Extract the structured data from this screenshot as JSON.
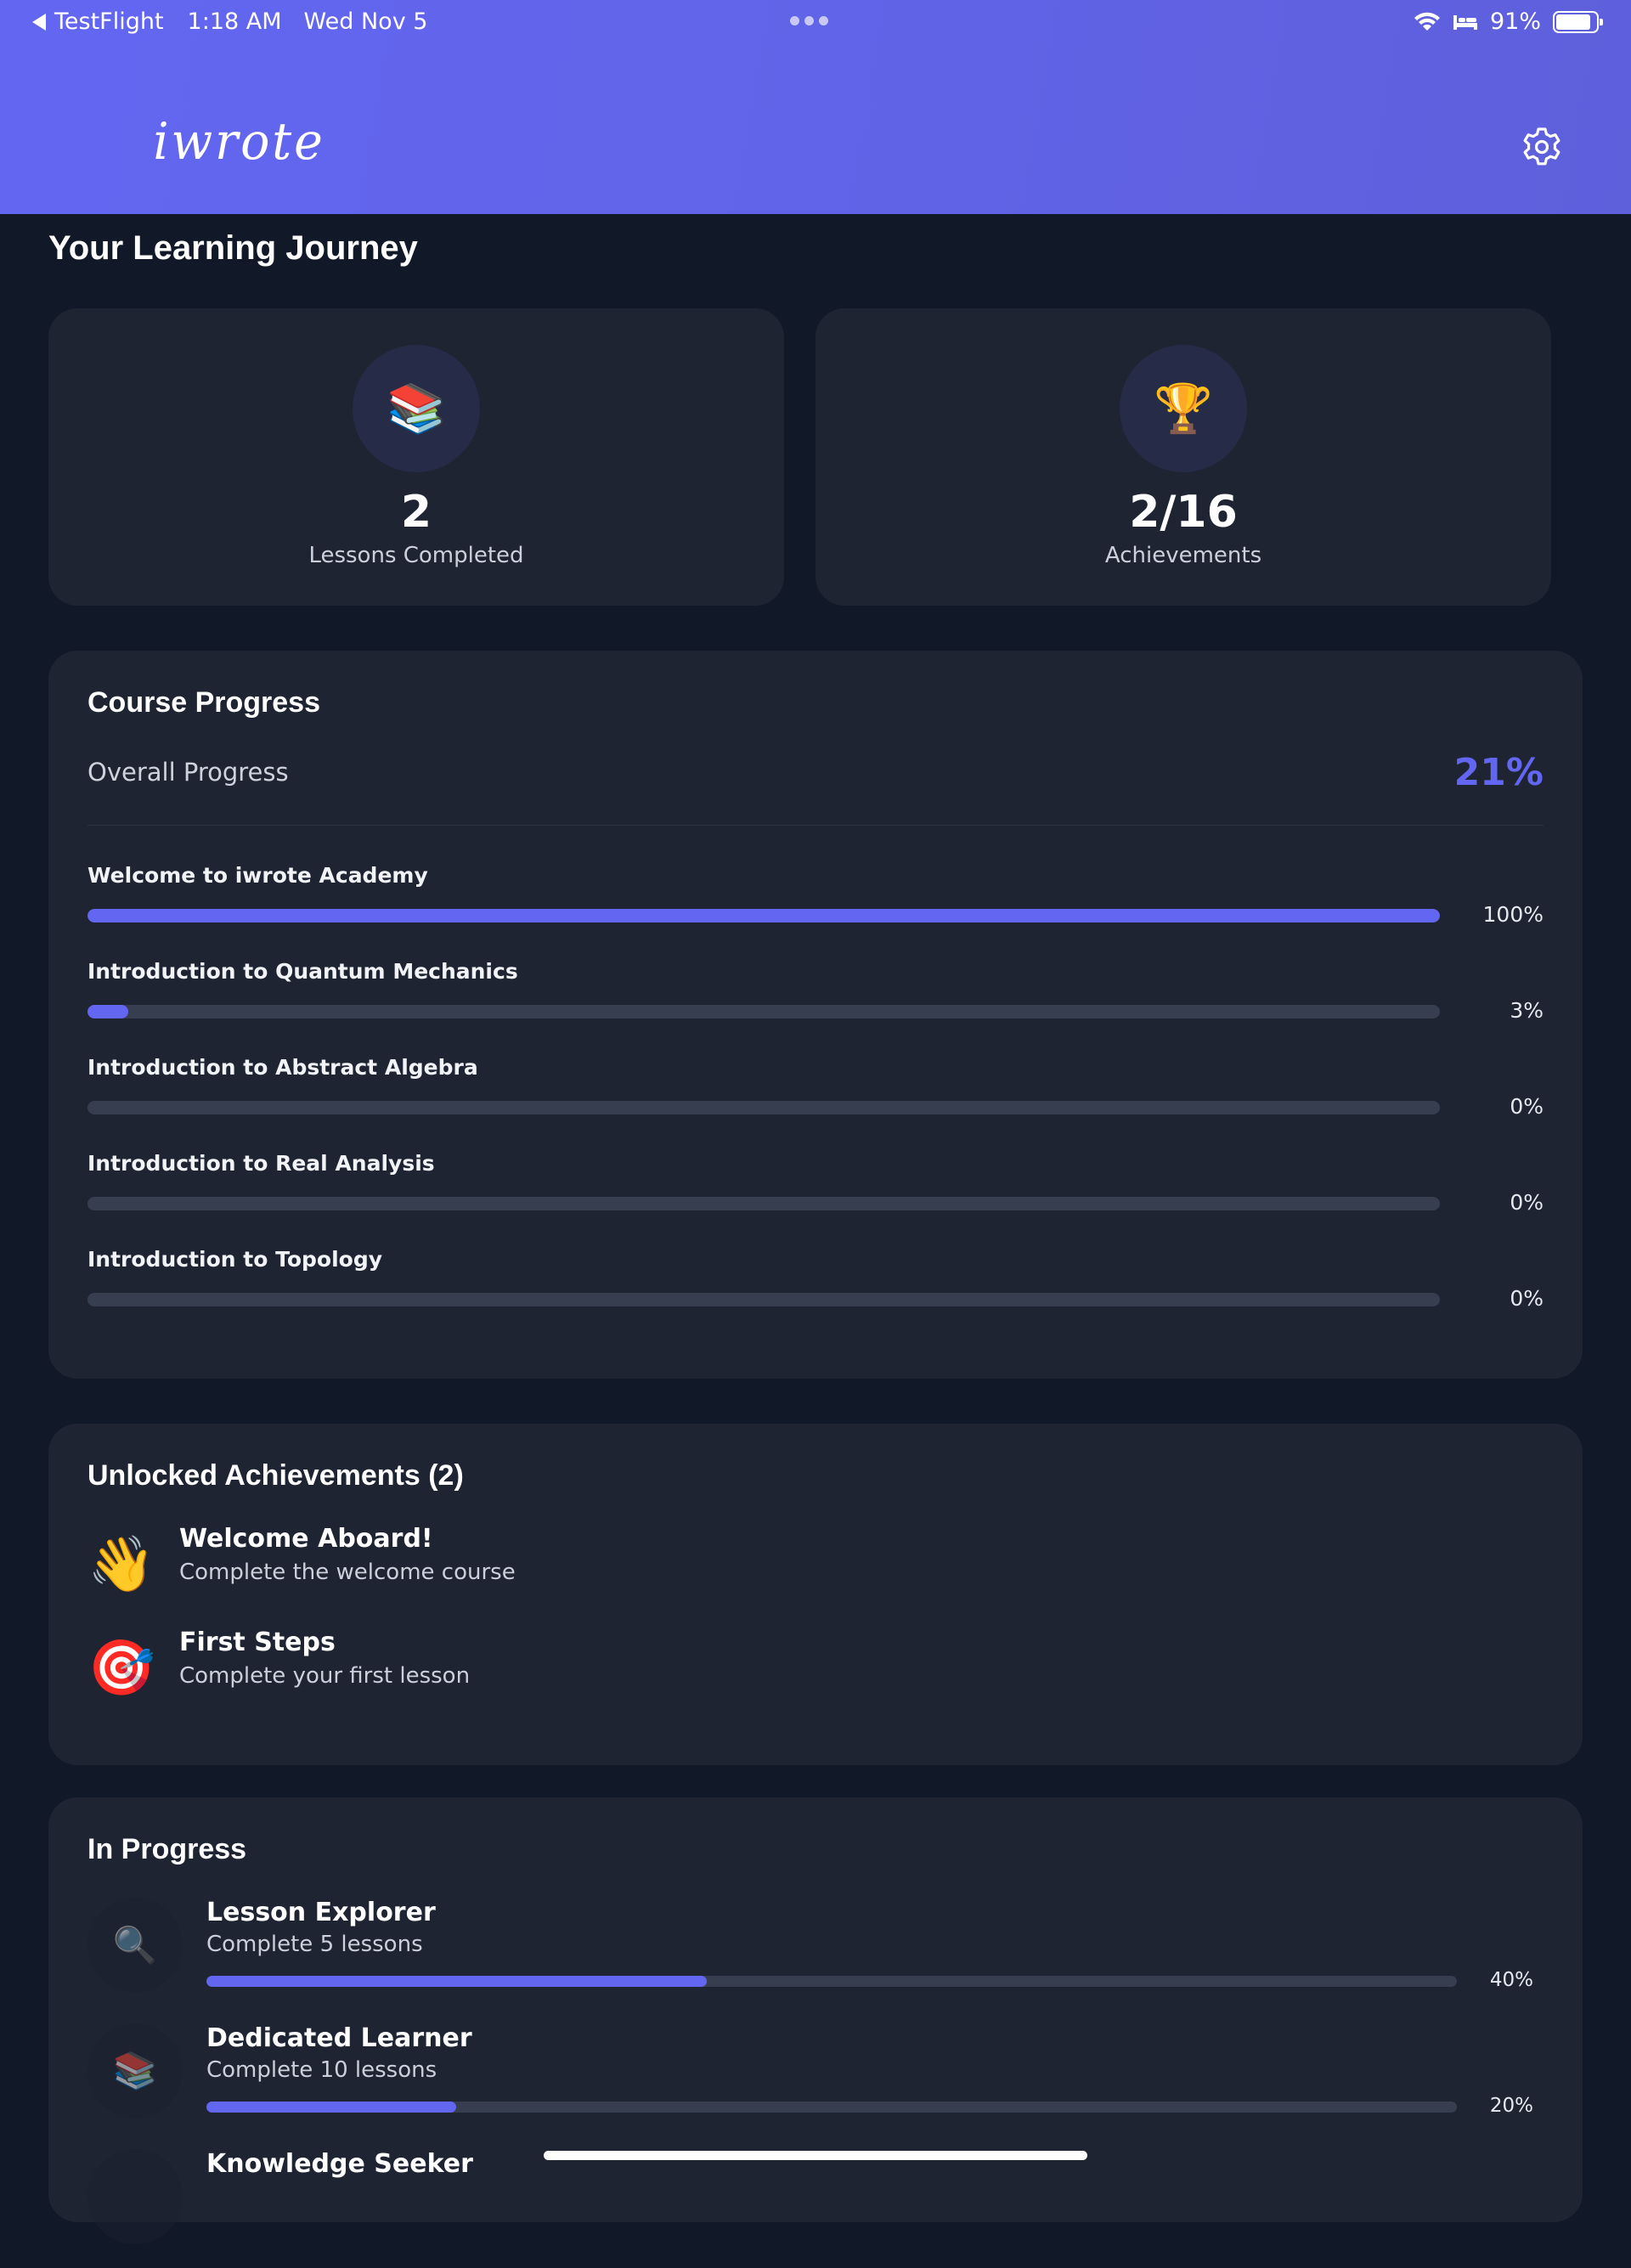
{
  "status_bar": {
    "back_app": "TestFlight",
    "time": "1:18 AM",
    "date": "Wed Nov 5",
    "battery": "91%",
    "battery_level": 0.91
  },
  "header": {
    "logo": "iwrote",
    "settings_icon": "gear-icon"
  },
  "page_title": "Your Learning Journey",
  "stats": [
    {
      "icon": "📚",
      "value": "2",
      "label": "Lessons Completed"
    },
    {
      "icon": "🏆",
      "value": "2/16",
      "label": "Achievements"
    }
  ],
  "course_progress": {
    "title": "Course Progress",
    "overall_label": "Overall Progress",
    "overall_value": "21%",
    "courses": [
      {
        "name": "Welcome to iwrote Academy",
        "percent": "100%",
        "fraction": 1.0
      },
      {
        "name": "Introduction to Quantum Mechanics",
        "percent": "3%",
        "fraction": 0.03
      },
      {
        "name": "Introduction to Abstract Algebra",
        "percent": "0%",
        "fraction": 0
      },
      {
        "name": "Introduction to Real Analysis",
        "percent": "0%",
        "fraction": 0
      },
      {
        "name": "Introduction to Topology",
        "percent": "0%",
        "fraction": 0
      }
    ]
  },
  "unlocked": {
    "title": "Unlocked Achievements (2)",
    "items": [
      {
        "emoji": "👋",
        "title": "Welcome Aboard!",
        "desc": "Complete the welcome course"
      },
      {
        "emoji": "🎯",
        "title": "First Steps",
        "desc": "Complete your first lesson"
      }
    ]
  },
  "in_progress": {
    "title": "In Progress",
    "items": [
      {
        "emoji": "🔍",
        "title": "Lesson Explorer",
        "desc": "Complete 5 lessons",
        "percent": "40%",
        "fraction": 0.4
      },
      {
        "emoji": "📚",
        "title": "Dedicated Learner",
        "desc": "Complete 10 lessons",
        "percent": "20%",
        "fraction": 0.2
      },
      {
        "emoji": "",
        "title": "Knowledge Seeker",
        "desc": "",
        "percent": "",
        "fraction": 0
      }
    ]
  },
  "colors": {
    "accent": "#6366f1",
    "background": "#111827",
    "card": "#1f2433",
    "track": "#373e50"
  }
}
